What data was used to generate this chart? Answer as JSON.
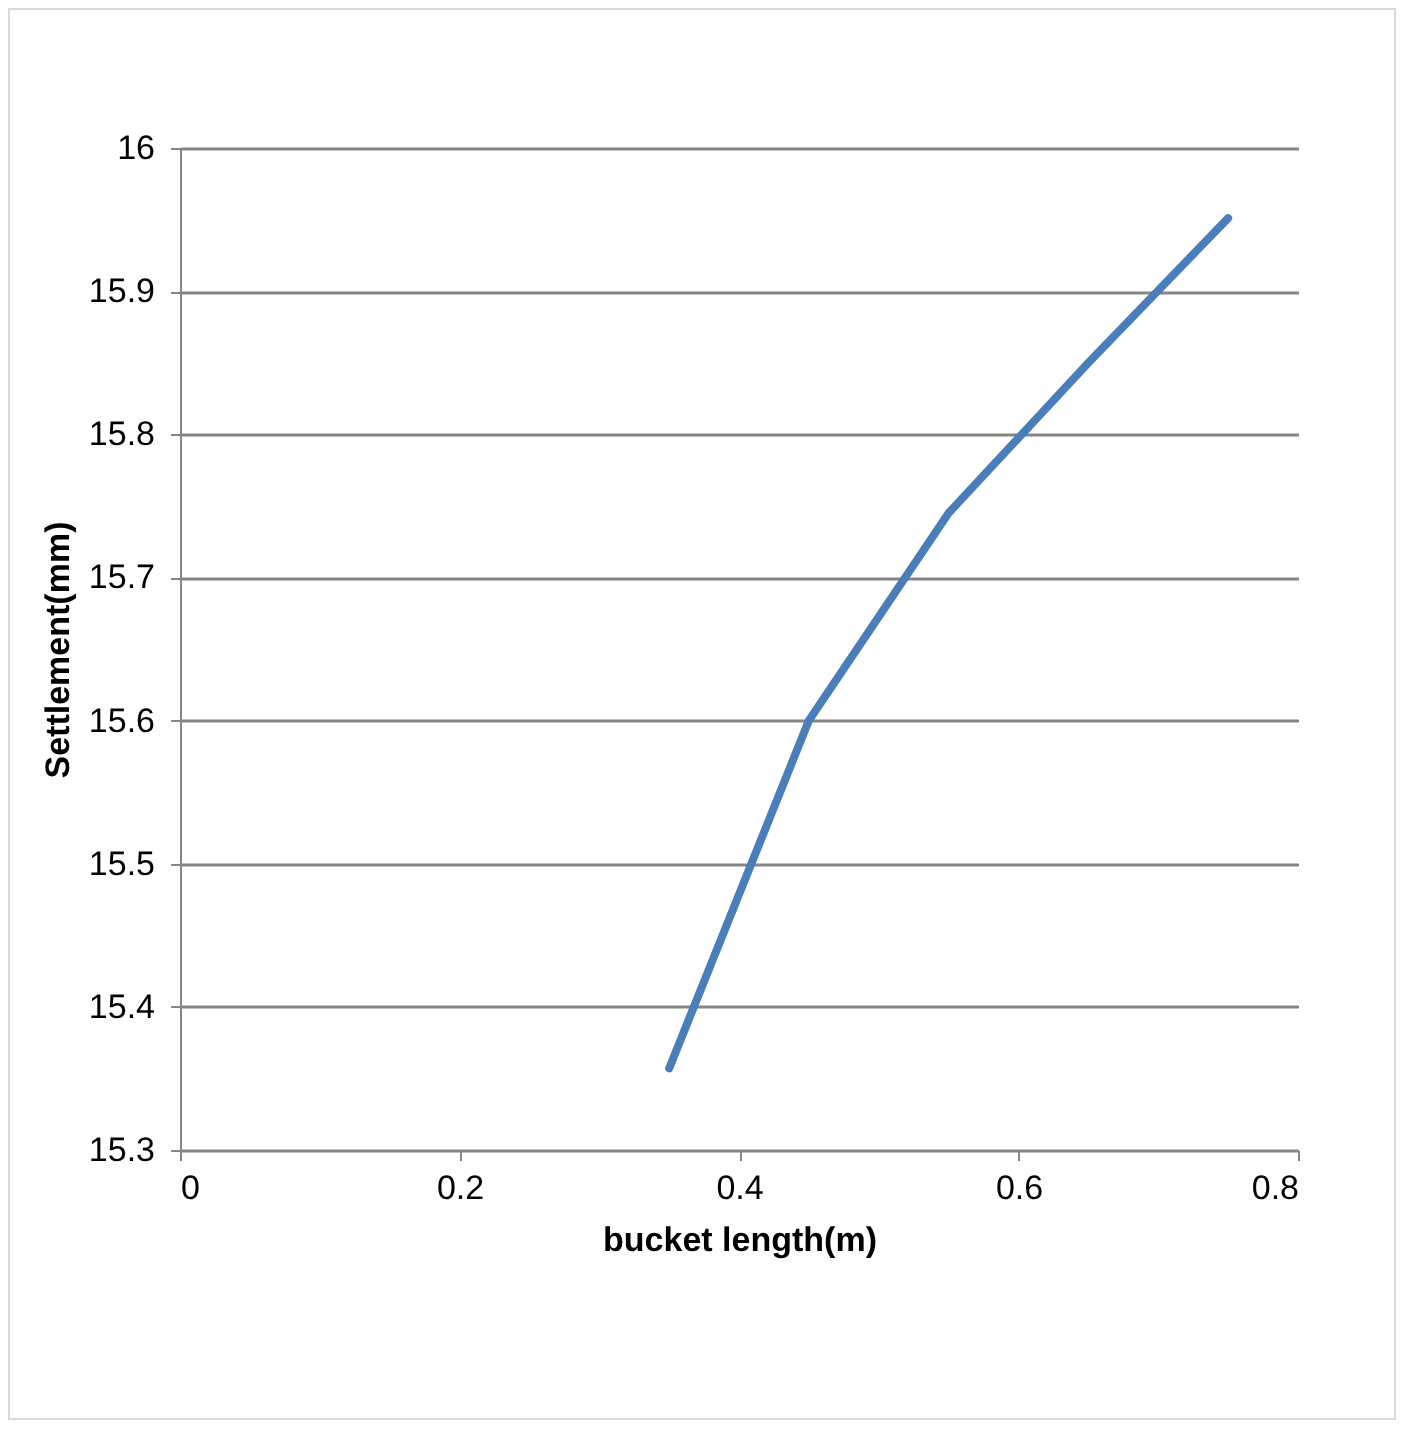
{
  "chart_data": {
    "type": "line",
    "xlabel": "bucket length(m)",
    "ylabel": "Settlement(mm)",
    "x": [
      0.35,
      0.45,
      0.55,
      0.65,
      0.75
    ],
    "series": [
      {
        "color": "#4a7ebb",
        "values": [
          15.357,
          15.6,
          15.745,
          15.85,
          15.951
        ]
      }
    ],
    "xlim": [
      0,
      0.8
    ],
    "xticks": [
      0,
      0.2,
      0.4,
      0.6,
      0.8
    ],
    "ylim": [
      15.3,
      16
    ],
    "yticks": [
      15.3,
      15.4,
      15.5,
      15.6,
      15.7,
      15.8,
      15.9,
      16
    ],
    "grid": "y",
    "legend": false,
    "marker": "none",
    "line_style": "solid"
  }
}
